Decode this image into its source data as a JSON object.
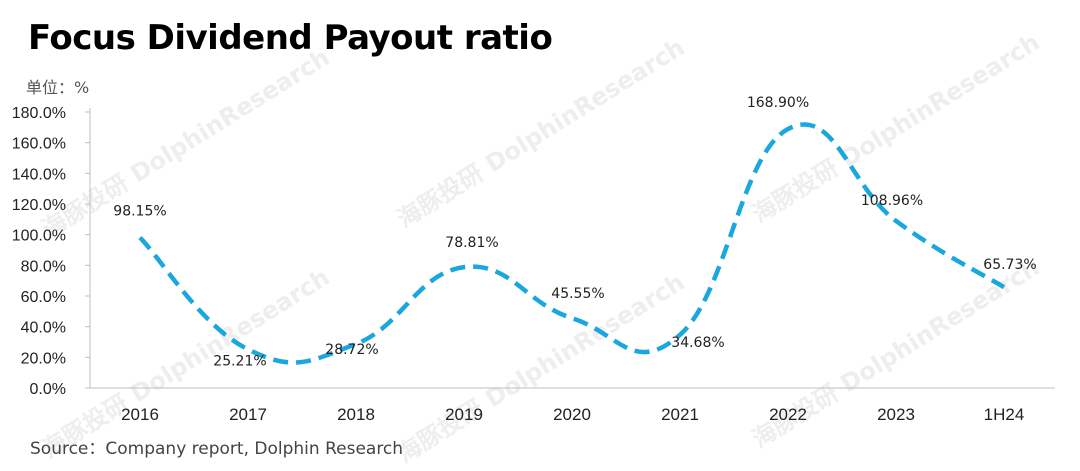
{
  "title": "Focus Dividend Payout ratio",
  "unit_label": "单位：%",
  "source": "Source：Company report, Dolphin Research",
  "watermark": "海豚投研 DolphinResearch",
  "colors": {
    "line": "#1aa7e0",
    "axis": "#bfbfbf",
    "text": "#222222"
  },
  "chart_data": {
    "type": "line",
    "title": "Focus Dividend Payout ratio",
    "xlabel": "",
    "ylabel": "",
    "categories": [
      "2016",
      "2017",
      "2018",
      "2019",
      "2020",
      "2021",
      "2022",
      "2023",
      "1H24"
    ],
    "series": [
      {
        "values": [
          98.15,
          25.21,
          28.72,
          78.81,
          45.55,
          34.68,
          168.9,
          108.96,
          65.73
        ]
      }
    ],
    "data_labels": [
      "98.15%",
      "25.21%",
      "28.72%",
      "78.81%",
      "45.55%",
      "34.68%",
      "168.90%",
      "108.96%",
      "65.73%"
    ],
    "y_ticks": [
      "0.0%",
      "20.0%",
      "40.0%",
      "60.0%",
      "80.0%",
      "100.0%",
      "120.0%",
      "140.0%",
      "160.0%",
      "180.0%"
    ],
    "ylim": [
      0,
      180
    ],
    "line_style": "dashed",
    "smooth": true,
    "grid": false,
    "legend": "none"
  }
}
